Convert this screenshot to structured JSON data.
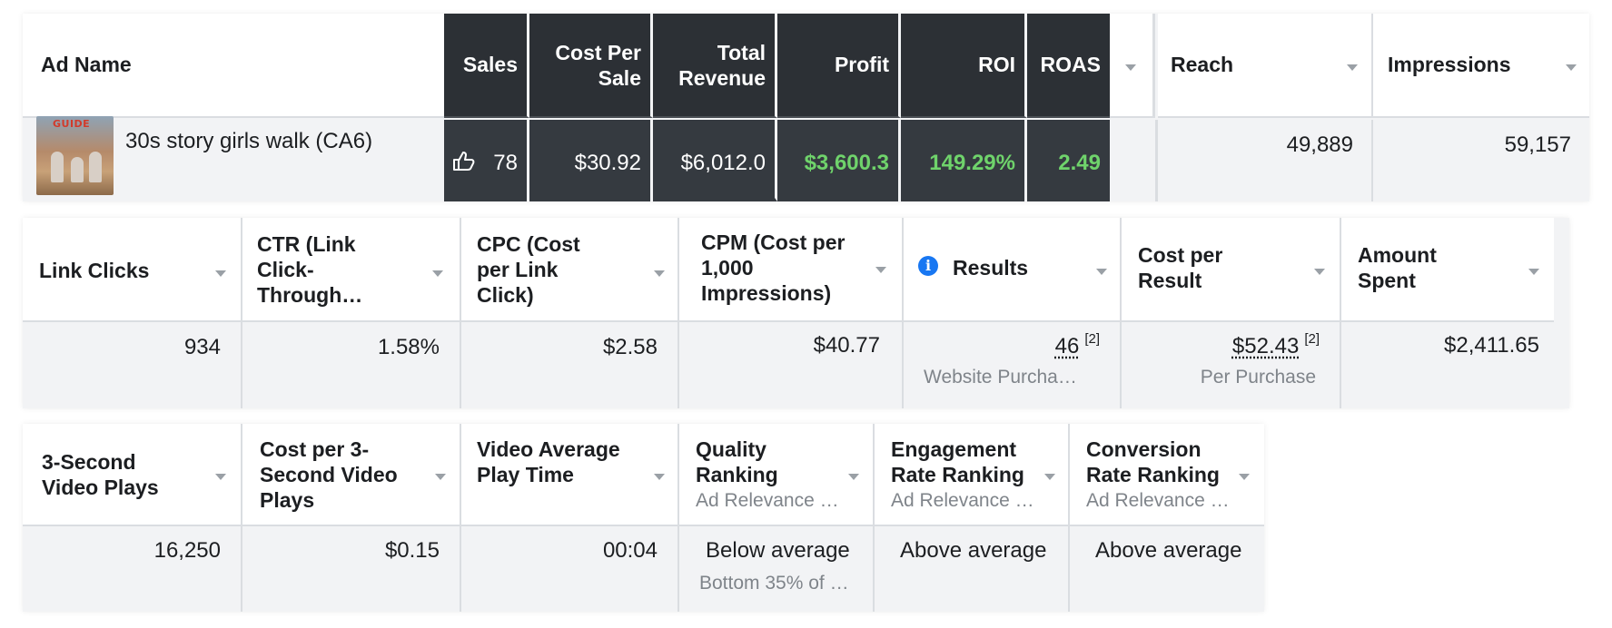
{
  "colors": {
    "dark_header": "#2c3035",
    "dark_cell": "#353a40",
    "positive_green": "#6fd36b",
    "row_background": "#f2f3f5",
    "info_blue": "#1877f2"
  },
  "table1": {
    "headers": {
      "ad_name": "Ad Name",
      "sales": "Sales",
      "cost_per_sale": "Cost Per Sale",
      "total_revenue": "Total Revenue",
      "profit": "Profit",
      "roi": "ROI",
      "roas": "ROAS",
      "reach": "Reach",
      "impressions": "Impressions"
    },
    "row": {
      "ad_name": "30s story girls walk (CA6)",
      "thumbnail_text": "GUIDE",
      "sales_icon": "thumbs-up-icon",
      "sales": "78",
      "cost_per_sale": "$30.92",
      "total_revenue": "$6,012.0",
      "profit": "$3,600.3",
      "roi": "149.29%",
      "roas": "2.49",
      "reach": "49,889",
      "impressions": "59,157"
    }
  },
  "table2": {
    "headers": {
      "link_clicks": "Link Clicks",
      "ctr": "CTR (Link Click-Through…",
      "cpc": "CPC (Cost per Link Click)",
      "cpm": "CPM (Cost per 1,000 Impressions)",
      "results": "Results",
      "cost_per_result": "Cost per Result",
      "amount_spent": "Amount Spent"
    },
    "row": {
      "link_clicks": "934",
      "ctr": "1.58%",
      "cpc": "$2.58",
      "cpm": "$40.77",
      "results": "46",
      "results_ref": "[2]",
      "results_sub": "Website Purcha…",
      "cost_per_result": "$52.43",
      "cost_per_result_ref": "[2]",
      "cost_per_result_sub": "Per Purchase",
      "amount_spent": "$2,411.65"
    }
  },
  "table3": {
    "headers": {
      "three_sec_plays": "3-Second Video Plays",
      "cost_per_3sec": "Cost per 3-Second Video Plays",
      "avg_play_time": "Video Average Play Time",
      "quality_ranking": "Quality Ranking",
      "quality_ranking_sub": "Ad Relevance …",
      "engagement_ranking": "Engagement Rate Ranking",
      "engagement_ranking_sub": "Ad Relevance …",
      "conversion_ranking": "Conversion Rate Ranking",
      "conversion_ranking_sub": "Ad Relevance …"
    },
    "row": {
      "three_sec_plays": "16,250",
      "cost_per_3sec": "$0.15",
      "avg_play_time": "00:04",
      "quality_ranking": "Below average",
      "quality_ranking_sub": "Bottom 35% of …",
      "engagement_ranking": "Above average",
      "conversion_ranking": "Above average"
    }
  }
}
